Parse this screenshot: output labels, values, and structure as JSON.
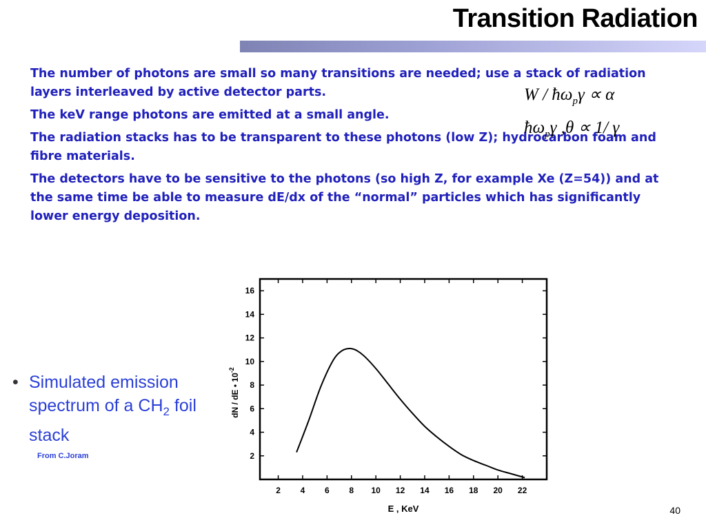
{
  "title": "Transition Radiation",
  "paragraphs": [
    "The number of photons are small so many transitions are needed; use a stack of radiation layers interleaved by active detector parts.",
    "The keV range photons are emitted at a small angle.",
    "The radiation stacks has to be transparent to these photons (low Z); hydrocarbon foam and fibre materials.",
    "The detectors have to be sensitive to the photons (so high Z, for example Xe (Z=54)) and at the same time be able to measure dE/dx of the “normal” particles which has significantly lower energy deposition."
  ],
  "formulas": {
    "f1_main": "W / ħω",
    "f1_sub": "p",
    "f1_rest": "γ ∝ α",
    "f2_main": "ħω",
    "f2_sub": "p",
    "f2_rest": "γ ,θ ∝ 1/ γ"
  },
  "bullet": {
    "marker": "•",
    "text_before": "Simulated emission spectrum of a CH",
    "subscript": "2",
    "text_after": " foil stack"
  },
  "credit": "From C.Joram",
  "page_number": "40",
  "chart_data": {
    "type": "line",
    "xlabel": "E , KeV",
    "ylabel": "dN / dE • 10",
    "ylabel_exponent": "-2",
    "xlim": [
      0.5,
      24
    ],
    "ylim": [
      0,
      17
    ],
    "xticks": [
      2,
      4,
      6,
      8,
      10,
      12,
      14,
      16,
      18,
      20,
      22
    ],
    "yticks": [
      2,
      4,
      6,
      8,
      10,
      12,
      14,
      16
    ],
    "series": [
      {
        "x": [
          3.5,
          4.5,
          5.5,
          6.5,
          7.2,
          7.8,
          8.3,
          9,
          10,
          11,
          12,
          13,
          14,
          15,
          16,
          17,
          18,
          19,
          20,
          21,
          22.2
        ],
        "y": [
          2.3,
          5.0,
          7.9,
          10.1,
          10.9,
          11.1,
          11.0,
          10.5,
          9.4,
          8.1,
          6.8,
          5.6,
          4.5,
          3.6,
          2.8,
          2.1,
          1.6,
          1.2,
          0.8,
          0.5,
          0.15
        ]
      }
    ]
  }
}
